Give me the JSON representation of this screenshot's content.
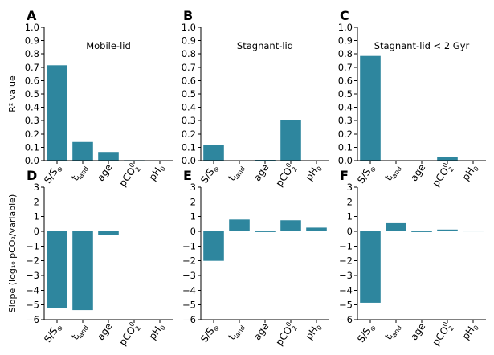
{
  "figure": {
    "bar_color": "#2e869e",
    "category_labels": [
      {
        "id": "s",
        "main": "S/S",
        "sub": "⊕",
        "sup": ""
      },
      {
        "id": "tland",
        "main": "t",
        "sub": "land",
        "sup": ""
      },
      {
        "id": "age",
        "main": "age",
        "sub": "",
        "sup": ""
      },
      {
        "id": "pco2",
        "main": "pCO",
        "sub": "2",
        "sup": "0"
      },
      {
        "id": "ph",
        "main": "pH",
        "sub": "0",
        "sup": ""
      }
    ],
    "row_labels": [
      {
        "id": "r2",
        "text": "R² value"
      },
      {
        "id": "slope",
        "text": "Slope (log₁₀ pCO₂/variable)"
      }
    ]
  },
  "chart_data": [
    {
      "panel": "A",
      "type": "bar",
      "row": 0,
      "col": 0,
      "title": "Mobile-lid",
      "categories": [
        "S/S⊕",
        "tland",
        "age",
        "pCO2_0",
        "pH0"
      ],
      "values": [
        0.715,
        0.14,
        0.065,
        0.004,
        0.002
      ],
      "ylim": [
        0,
        1.0
      ],
      "yticks": [
        0.0,
        0.1,
        0.2,
        0.3,
        0.4,
        0.5,
        0.6,
        0.7,
        0.8,
        0.9,
        1.0
      ]
    },
    {
      "panel": "B",
      "type": "bar",
      "row": 0,
      "col": 1,
      "title": "Stagnant-lid",
      "categories": [
        "S/S⊕",
        "tland",
        "age",
        "pCO2_0",
        "pH0"
      ],
      "values": [
        0.12,
        0.001,
        0.006,
        0.305,
        0.002
      ],
      "ylim": [
        0,
        1.0
      ],
      "yticks": [
        0.0,
        0.1,
        0.2,
        0.3,
        0.4,
        0.5,
        0.6,
        0.7,
        0.8,
        0.9,
        1.0
      ]
    },
    {
      "panel": "C",
      "type": "bar",
      "row": 0,
      "col": 2,
      "title": "Stagnant-lid < 2 Gyr",
      "categories": [
        "S/S⊕",
        "tland",
        "age",
        "pCO2_0",
        "pH0"
      ],
      "values": [
        0.785,
        0.001,
        0.001,
        0.03,
        0.002
      ],
      "ylim": [
        0,
        1.0
      ],
      "yticks": [
        0.0,
        0.1,
        0.2,
        0.3,
        0.4,
        0.5,
        0.6,
        0.7,
        0.8,
        0.9,
        1.0
      ]
    },
    {
      "panel": "D",
      "type": "bar",
      "row": 1,
      "col": 0,
      "title": "",
      "categories": [
        "S/S⊕",
        "tland",
        "age",
        "pCO2_0",
        "pH0"
      ],
      "values": [
        -5.2,
        -5.35,
        -0.25,
        0.05,
        0.05
      ],
      "ylim": [
        -6,
        3
      ],
      "yticks": [
        -6,
        -5,
        -4,
        -3,
        -2,
        -1,
        0,
        1,
        2,
        3
      ]
    },
    {
      "panel": "E",
      "type": "bar",
      "row": 1,
      "col": 1,
      "title": "",
      "categories": [
        "S/S⊕",
        "tland",
        "age",
        "pCO2_0",
        "pH0"
      ],
      "values": [
        -2.0,
        0.8,
        -0.05,
        0.75,
        0.25
      ],
      "ylim": [
        -6,
        3
      ],
      "yticks": [
        -6,
        -5,
        -4,
        -3,
        -2,
        -1,
        0,
        1,
        2,
        3
      ]
    },
    {
      "panel": "F",
      "type": "bar",
      "row": 1,
      "col": 2,
      "title": "",
      "categories": [
        "S/S⊕",
        "tland",
        "age",
        "pCO2_0",
        "pH0"
      ],
      "values": [
        -4.85,
        0.55,
        -0.05,
        0.12,
        0.03
      ],
      "ylim": [
        -6,
        3
      ],
      "yticks": [
        -6,
        -5,
        -4,
        -3,
        -2,
        -1,
        0,
        1,
        2,
        3
      ]
    }
  ]
}
